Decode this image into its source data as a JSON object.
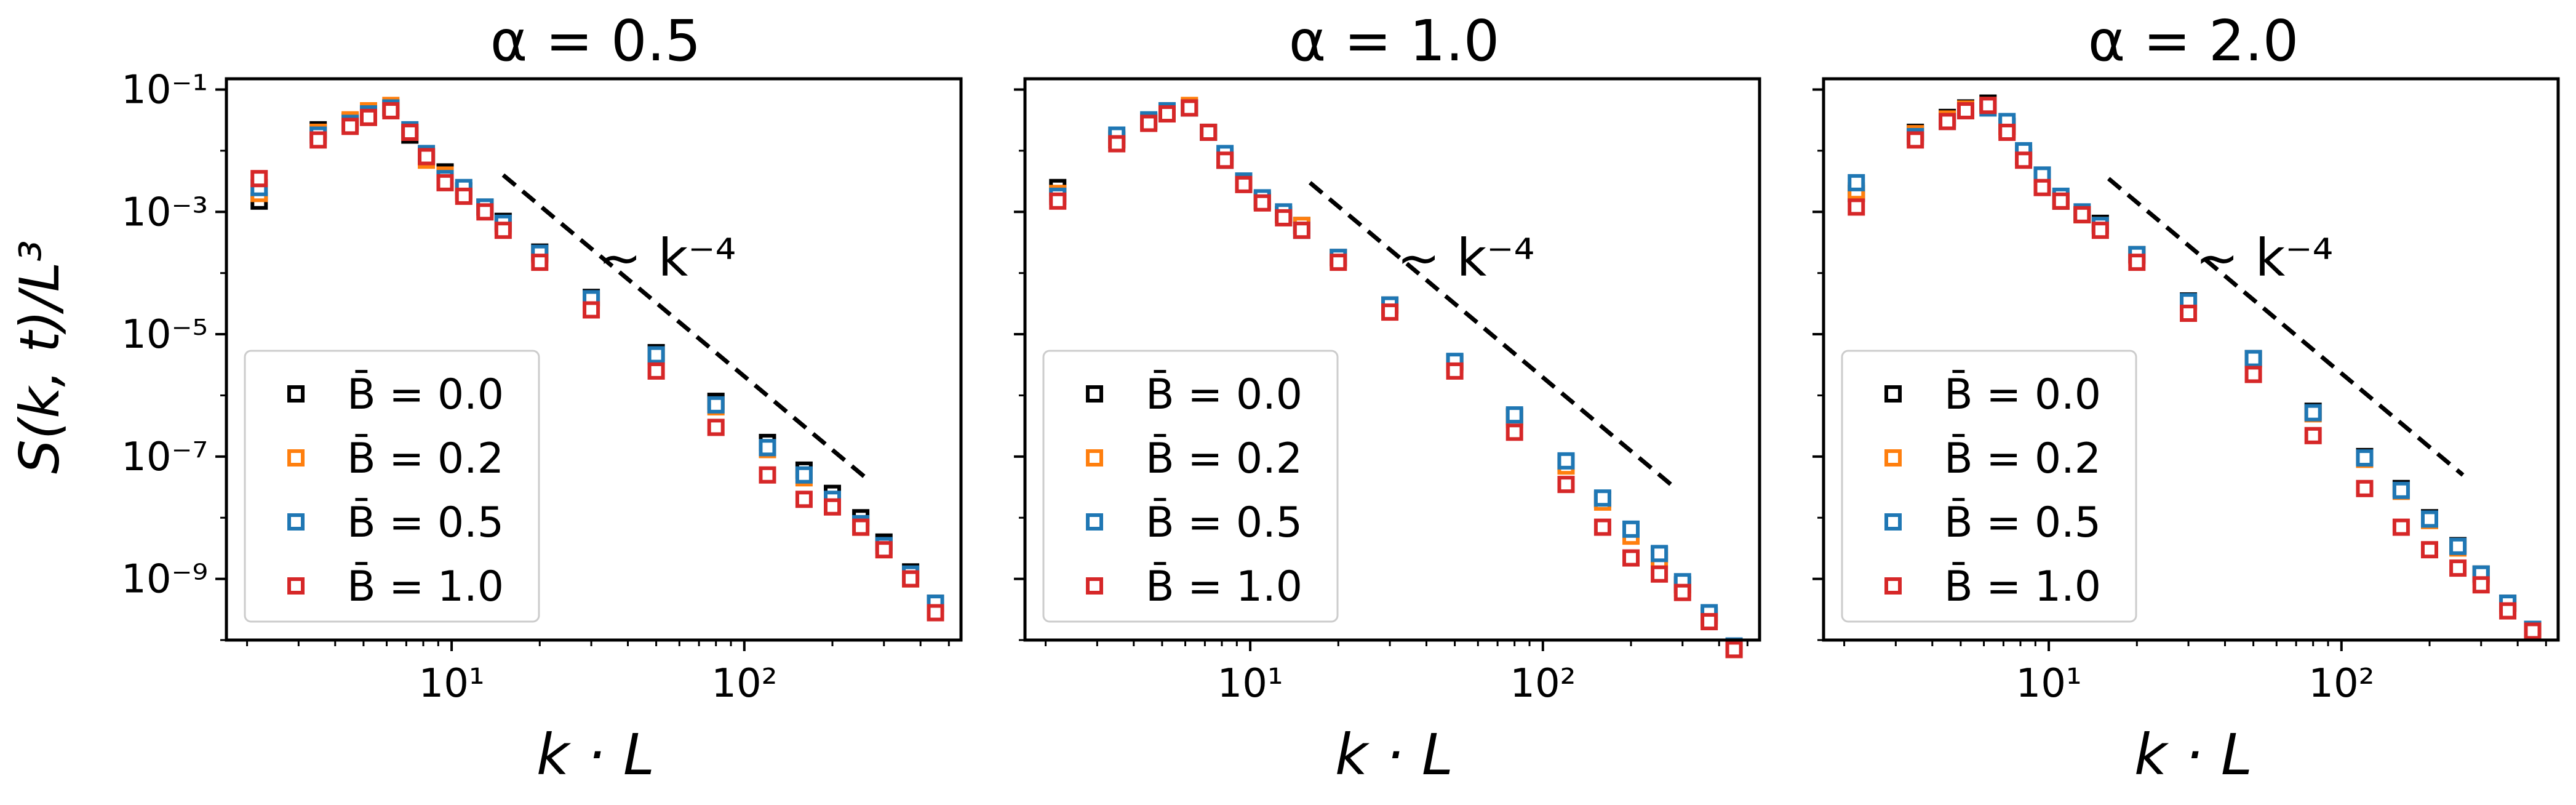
{
  "figure": {
    "ylabel": "S(k, t)/L³",
    "xlabel": "k · L",
    "scaling_label": "~ k⁻⁴"
  },
  "legend": {
    "entries": [
      "B̄ = 0.0",
      "B̄ = 0.2",
      "B̄ = 0.5",
      "B̄ = 1.0"
    ],
    "colors": [
      "#000000",
      "#ff7f0e",
      "#1f77b4",
      "#d62728"
    ]
  },
  "chart_data": [
    {
      "type": "scatter",
      "title": "α = 0.5",
      "xlabel": "k · L",
      "ylabel": "S(k, t)/L³",
      "xscale": "log",
      "yscale": "log",
      "xlim": [
        1.7,
        550
      ],
      "ylim": [
        1e-10,
        0.15
      ],
      "xticks": [
        10,
        100
      ],
      "xtick_labels": [
        "10¹",
        "10²"
      ],
      "yticks": [
        1e-09,
        1e-07,
        1e-05,
        0.001,
        0.1
      ],
      "ytick_labels": [
        "10⁻⁹",
        "10⁻⁷",
        "10⁻⁵",
        "10⁻³",
        "10⁻¹"
      ],
      "legend_position": "lower-left",
      "reference_line": {
        "label": "~ k⁻⁴",
        "style": "dashed",
        "x": [
          15,
          260
        ],
        "y": [
          0.004,
          4.5e-08
        ]
      },
      "series": [
        {
          "name": "B̄ = 0.0",
          "color": "#000000",
          "x": [
            2.2,
            3.5,
            4.5,
            5.2,
            6.2,
            7.2,
            8.2,
            9.5,
            11,
            13,
            15,
            20,
            30,
            50,
            80,
            120,
            160,
            200,
            250,
            300,
            370,
            450
          ],
          "y": [
            0.0015,
            0.022,
            0.03,
            0.04,
            0.05,
            0.018,
            0.008,
            0.0045,
            0.0022,
            0.0012,
            0.0007,
            0.00022,
            4e-05,
            5e-06,
            8e-07,
            1.7e-07,
            6e-08,
            2.5e-08,
            1e-08,
            4e-09,
            1.3e-09,
            4e-10
          ]
        },
        {
          "name": "B̄ = 0.2",
          "color": "#ff7f0e",
          "x": [
            2.2,
            3.5,
            4.5,
            5.2,
            6.2,
            7.2,
            8.2,
            9.5,
            11,
            13,
            15,
            20,
            30,
            50,
            80,
            120,
            160,
            200,
            250,
            300,
            370,
            450
          ],
          "y": [
            0.002,
            0.02,
            0.032,
            0.045,
            0.055,
            0.02,
            0.007,
            0.004,
            0.002,
            0.0011,
            0.0006,
            0.0002,
            3.5e-05,
            4.3e-06,
            6.5e-07,
            1.3e-07,
            4.5e-08,
            1.8e-08,
            7e-09,
            3e-09,
            1e-09,
            3e-10
          ]
        },
        {
          "name": "B̄ = 0.5",
          "color": "#1f77b4",
          "x": [
            2.2,
            3.5,
            4.5,
            5.2,
            6.2,
            7.2,
            8.2,
            9.5,
            11,
            13,
            15,
            20,
            30,
            50,
            80,
            120,
            160,
            200,
            250,
            300,
            370,
            450
          ],
          "y": [
            0.0025,
            0.018,
            0.028,
            0.04,
            0.05,
            0.022,
            0.009,
            0.0035,
            0.0025,
            0.0012,
            0.00065,
            0.00021,
            3.8e-05,
            4.6e-06,
            7e-07,
            1.4e-07,
            5e-08,
            2e-08,
            8e-09,
            3.5e-09,
            1.2e-09,
            4e-10
          ]
        },
        {
          "name": "B̄ = 1.0",
          "color": "#d62728",
          "x": [
            2.2,
            3.5,
            4.5,
            5.2,
            6.2,
            7.2,
            8.2,
            9.5,
            11,
            13,
            15,
            20,
            30,
            50,
            80,
            120,
            160,
            200,
            250,
            300,
            370,
            450
          ],
          "y": [
            0.0035,
            0.015,
            0.025,
            0.035,
            0.045,
            0.02,
            0.008,
            0.003,
            0.0018,
            0.001,
            0.0005,
            0.00015,
            2.5e-05,
            2.5e-06,
            3e-07,
            5e-08,
            2e-08,
            1.5e-08,
            7e-09,
            3e-09,
            1e-09,
            2.8e-10
          ]
        }
      ]
    },
    {
      "type": "scatter",
      "title": "α = 1.0",
      "xlabel": "k · L",
      "xscale": "log",
      "yscale": "log",
      "xlim": [
        1.7,
        550
      ],
      "ylim": [
        1e-10,
        0.15
      ],
      "xticks": [
        10,
        100
      ],
      "xtick_labels": [
        "10¹",
        "10²"
      ],
      "legend_position": "lower-left",
      "reference_line": {
        "label": "~ k⁻⁴",
        "style": "dashed",
        "x": [
          16,
          280
        ],
        "y": [
          0.003,
          3.2e-08
        ]
      },
      "series": [
        {
          "name": "B̄ = 0.0",
          "color": "#000000",
          "x": [
            2.2,
            3.5,
            4.5,
            5.2,
            6.2,
            7.2,
            8.2,
            9.5,
            11,
            13,
            15,
            20,
            30,
            50,
            80,
            120,
            160,
            200,
            250,
            300,
            370,
            450
          ],
          "y": [
            0.0025,
            0.015,
            0.03,
            0.045,
            0.05,
            0.02,
            0.007,
            0.003,
            0.0015,
            0.0009,
            0.0006,
            0.00018,
            3e-05,
            3.5e-06,
            4.5e-07,
            8e-08,
            2e-08,
            6e-09,
            2.5e-09,
            8e-10,
            2.5e-10,
            7e-11
          ]
        },
        {
          "name": "B̄ = 0.2",
          "color": "#ff7f0e",
          "x": [
            2.2,
            3.5,
            4.5,
            5.2,
            6.2,
            7.2,
            8.2,
            9.5,
            11,
            13,
            15,
            20,
            30,
            50,
            80,
            120,
            160,
            200,
            250,
            300,
            370,
            450
          ],
          "y": [
            0.002,
            0.016,
            0.03,
            0.045,
            0.055,
            0.02,
            0.008,
            0.003,
            0.0016,
            0.0009,
            0.0006,
            0.00017,
            2.8e-05,
            3.2e-06,
            4e-07,
            7e-08,
            1.8e-08,
            5e-09,
            2e-09,
            7e-10,
            2.2e-10,
            7e-11
          ]
        },
        {
          "name": "B̄ = 0.5",
          "color": "#1f77b4",
          "x": [
            2.2,
            3.5,
            4.5,
            5.2,
            6.2,
            7.2,
            8.2,
            9.5,
            11,
            13,
            15,
            20,
            30,
            50,
            80,
            120,
            160,
            200,
            250,
            300,
            370,
            450
          ],
          "y": [
            0.0018,
            0.018,
            0.032,
            0.045,
            0.05,
            0.02,
            0.009,
            0.0032,
            0.0017,
            0.001,
            0.0005,
            0.00018,
            3e-05,
            3.6e-06,
            4.8e-07,
            8.5e-08,
            2.1e-08,
            6.5e-09,
            2.6e-09,
            9e-10,
            2.8e-10,
            8e-11
          ]
        },
        {
          "name": "B̄ = 1.0",
          "color": "#d62728",
          "x": [
            2.2,
            3.5,
            4.5,
            5.2,
            6.2,
            7.2,
            8.2,
            9.5,
            11,
            13,
            15,
            20,
            30,
            50,
            80,
            120,
            160,
            200,
            250,
            300,
            370,
            450
          ],
          "y": [
            0.0015,
            0.013,
            0.028,
            0.04,
            0.05,
            0.02,
            0.007,
            0.0028,
            0.0014,
            0.0008,
            0.0005,
            0.00015,
            2.3e-05,
            2.5e-06,
            2.5e-07,
            3.5e-08,
            7e-09,
            2.2e-09,
            1.2e-09,
            6e-10,
            2e-10,
            7e-11
          ]
        }
      ]
    },
    {
      "type": "scatter",
      "title": "α = 2.0",
      "xlabel": "k · L",
      "xscale": "log",
      "yscale": "log",
      "xlim": [
        1.7,
        550
      ],
      "ylim": [
        1e-10,
        0.15
      ],
      "xticks": [
        10,
        100
      ],
      "xtick_labels": [
        "10¹",
        "10²"
      ],
      "legend_position": "lower-left",
      "reference_line": {
        "label": "~ k⁻⁴",
        "style": "dashed",
        "x": [
          16,
          260
        ],
        "y": [
          0.0035,
          5e-08
        ]
      },
      "series": [
        {
          "name": "B̄ = 0.0",
          "color": "#000000",
          "x": [
            2.2,
            3.5,
            4.5,
            5.2,
            6.2,
            7.2,
            8.2,
            9.5,
            11,
            13,
            15,
            20,
            30,
            50,
            80,
            120,
            160,
            200,
            250,
            300,
            370,
            450
          ],
          "y": [
            0.002,
            0.02,
            0.035,
            0.05,
            0.06,
            0.025,
            0.008,
            0.004,
            0.0015,
            0.0009,
            0.00065,
            0.0002,
            3.5e-05,
            4e-06,
            5.5e-07,
            1e-07,
            3e-08,
            1e-08,
            3.5e-09,
            1.2e-09,
            4e-10,
            1.5e-10
          ]
        },
        {
          "name": "B̄ = 0.2",
          "color": "#ff7f0e",
          "x": [
            2.2,
            3.5,
            4.5,
            5.2,
            6.2,
            7.2,
            8.2,
            9.5,
            11,
            13,
            15,
            20,
            30,
            50,
            80,
            120,
            160,
            200,
            250,
            300,
            370,
            450
          ],
          "y": [
            0.0022,
            0.019,
            0.033,
            0.048,
            0.055,
            0.022,
            0.009,
            0.0035,
            0.0016,
            0.0009,
            0.0006,
            0.00019,
            3.3e-05,
            3.8e-06,
            5e-07,
            9e-08,
            2.7e-08,
            9e-09,
            3.2e-09,
            1.1e-09,
            3.7e-10,
            1.4e-10
          ]
        },
        {
          "name": "B̄ = 0.5",
          "color": "#1f77b4",
          "x": [
            2.2,
            3.5,
            4.5,
            5.2,
            6.2,
            7.2,
            8.2,
            9.5,
            11,
            13,
            15,
            20,
            30,
            50,
            80,
            120,
            160,
            200,
            250,
            300,
            370,
            450
          ],
          "y": [
            0.003,
            0.017,
            0.03,
            0.045,
            0.05,
            0.03,
            0.01,
            0.004,
            0.0018,
            0.001,
            0.0006,
            0.0002,
            3.4e-05,
            4e-06,
            5.2e-07,
            9.5e-08,
            2.8e-08,
            9.5e-09,
            3.4e-09,
            1.2e-09,
            4e-10,
            1.5e-10
          ]
        },
        {
          "name": "B̄ = 1.0",
          "color": "#d62728",
          "x": [
            2.2,
            3.5,
            4.5,
            5.2,
            6.2,
            7.2,
            8.2,
            9.5,
            11,
            13,
            15,
            20,
            30,
            50,
            80,
            120,
            160,
            200,
            250,
            300,
            370,
            450
          ],
          "y": [
            0.0012,
            0.015,
            0.03,
            0.045,
            0.055,
            0.02,
            0.007,
            0.0025,
            0.0015,
            0.0009,
            0.0005,
            0.00015,
            2.2e-05,
            2.2e-06,
            2.2e-07,
            3e-08,
            7e-09,
            3e-09,
            1.5e-09,
            8e-10,
            3e-10,
            1.4e-10
          ]
        }
      ]
    }
  ]
}
